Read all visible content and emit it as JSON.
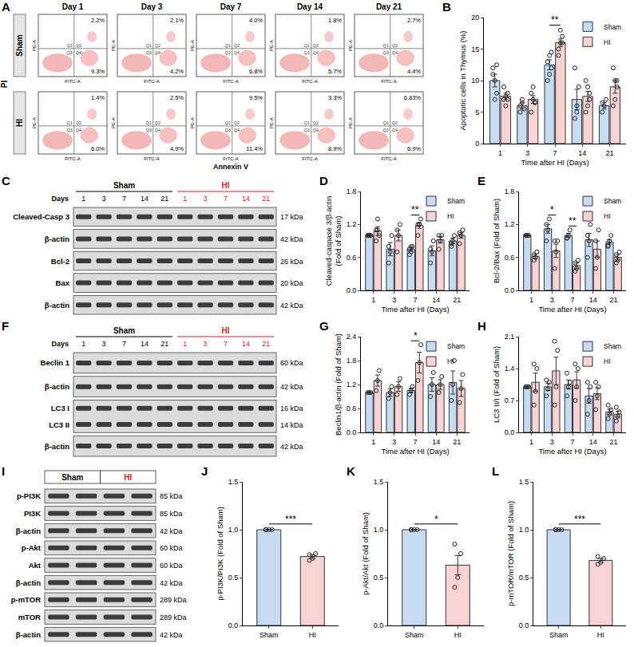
{
  "flow_cytometry": {
    "panel": "A",
    "y_axis": "PI",
    "x_axis": "Annexin V",
    "y_channel": "PE-A",
    "x_channel": "FITC-A",
    "quadrants": [
      "Q1",
      "Q2",
      "Q3",
      "Q4"
    ],
    "days": [
      "Day 1",
      "Day 3",
      "Day 7",
      "Day 14",
      "Day 21"
    ],
    "rows": [
      {
        "label": "Sham",
        "upper_right": [
          "2.2%",
          "2.1%",
          "4.0%",
          "1.8%",
          "2.7%"
        ],
        "lower_right": [
          "9.3%",
          "4.2%",
          "6.8%",
          "5.7%",
          "4.4%"
        ]
      },
      {
        "label": "HI",
        "upper_right": [
          "1.4%",
          "2.5%",
          "9.5%",
          "3.3%",
          "6.83%"
        ],
        "lower_right": [
          "6.0%",
          "4.9%",
          "11.4%",
          "8.9%",
          "6.9%"
        ]
      }
    ]
  },
  "western_blots": [
    {
      "panel": "C",
      "lane_title": "Days",
      "groups": [
        {
          "label": "Sham",
          "color": "#000000",
          "lanes": [
            "1",
            "3",
            "7",
            "14",
            "21"
          ]
        },
        {
          "label": "HI",
          "color": "#e01e1e",
          "lanes": [
            "1",
            "3",
            "7",
            "14",
            "21"
          ]
        }
      ],
      "rows": [
        {
          "labels": [
            "Cleaved-Casp 3"
          ],
          "mws": [
            "17 kDa"
          ]
        },
        {
          "labels": [
            "β-actin"
          ],
          "mws": [
            "42 kDa"
          ]
        },
        {
          "labels": [
            "Bcl-2"
          ],
          "mws": [
            "26 kDa"
          ]
        },
        {
          "labels": [
            "Bax"
          ],
          "mws": [
            "20 kDa"
          ]
        },
        {
          "labels": [
            "β-actin"
          ],
          "mws": [
            "42 kDa"
          ]
        }
      ]
    },
    {
      "panel": "F",
      "lane_title": "Days",
      "groups": [
        {
          "label": "Sham",
          "color": "#000000",
          "lanes": [
            "1",
            "3",
            "7",
            "14",
            "21"
          ]
        },
        {
          "label": "HI",
          "color": "#e01e1e",
          "lanes": [
            "1",
            "3",
            "7",
            "14",
            "21"
          ]
        }
      ],
      "rows": [
        {
          "labels": [
            "Beclin 1"
          ],
          "mws": [
            "60 kDa"
          ]
        },
        {
          "labels": [
            "β-actin"
          ],
          "mws": [
            "42 kDa"
          ]
        },
        {
          "labels": [
            "LC3 I",
            "LC3 II"
          ],
          "mws": [
            "16 kDa",
            "14 kDa"
          ]
        },
        {
          "labels": [
            "β-actin"
          ],
          "mws": [
            "42 kDa"
          ]
        }
      ]
    },
    {
      "panel": "I",
      "groups": [
        {
          "label": "Sham",
          "color": "#000000"
        },
        {
          "label": "HI",
          "color": "#e01e1e"
        }
      ],
      "rows": [
        {
          "labels": [
            "p-PI3K"
          ],
          "mws": [
            "85 kDa"
          ]
        },
        {
          "labels": [
            "PI3K"
          ],
          "mws": [
            "85 kDa"
          ]
        },
        {
          "labels": [
            "β-actin"
          ],
          "mws": [
            "42 kDa"
          ]
        },
        {
          "labels": [
            "p-Akt"
          ],
          "mws": [
            "60 kDa"
          ]
        },
        {
          "labels": [
            "Akt"
          ],
          "mws": [
            "60 kDa"
          ]
        },
        {
          "labels": [
            "β-actin"
          ],
          "mws": [
            "42 kDa"
          ]
        },
        {
          "labels": [
            "p-mTOR"
          ],
          "mws": [
            "289 kDa"
          ]
        },
        {
          "labels": [
            "mTOR"
          ],
          "mws": [
            "289 kDa"
          ]
        },
        {
          "labels": [
            "β-actin"
          ],
          "mws": [
            "42 kDa"
          ]
        }
      ]
    }
  ],
  "chart_data": [
    {
      "panel": "B",
      "type": "bar",
      "xlabel": "Time after HI (Days)",
      "ylabel": "Apoptotic cells in Thymus (%)",
      "categories": [
        "1",
        "3",
        "7",
        "14",
        "21"
      ],
      "ylim": [
        0,
        20
      ],
      "yticks": [
        0,
        5,
        10,
        15,
        20
      ],
      "grid": false,
      "legend": "top right",
      "series": [
        {
          "name": "Sham",
          "color": "#c6dcf2",
          "values": [
            10,
            6,
            12.5,
            7,
            6
          ],
          "errors": [
            1.0,
            0.5,
            0.8,
            1.6,
            0.5
          ],
          "points": [
            [
              12,
              10,
              8,
              11,
              7,
              12.5
            ],
            [
              5,
              7,
              5.5,
              6,
              6.5
            ],
            [
              10,
              14,
              12,
              13,
              11,
              14.5
            ],
            [
              4,
              6,
              9,
              12,
              5
            ],
            [
              5,
              6,
              7,
              6.5
            ]
          ]
        },
        {
          "name": "HI",
          "color": "#f8d3d3",
          "values": [
            7.5,
            7,
            16,
            7.5,
            9
          ],
          "errors": [
            0.5,
            0.6,
            0.6,
            0.8,
            1.0
          ],
          "points": [
            [
              7,
              6,
              8,
              9,
              7.5,
              7
            ],
            [
              5,
              7,
              6.5,
              8,
              9,
              6.5
            ],
            [
              14,
              16,
              17,
              15,
              18,
              16
            ],
            [
              5,
              6,
              8,
              10,
              9,
              7
            ],
            [
              6,
              7,
              9,
              12,
              10,
              10
            ]
          ]
        }
      ],
      "annotations": [
        {
          "categories": [
            "7"
          ],
          "text": "**"
        }
      ]
    },
    {
      "panel": "D",
      "type": "bar",
      "xlabel": "Time after HI (Days)",
      "ylabel": "Cleaved-caspase 3/β-actin (Fold of Sham)",
      "categories": [
        "1",
        "3",
        "7",
        "14",
        "21"
      ],
      "ylim": [
        0,
        1.8
      ],
      "yticks": [
        {
          "value": 0,
          "label": "0.0"
        },
        0.6,
        1.2,
        1.8
      ],
      "grid": false,
      "legend": "top right",
      "series": [
        {
          "name": "Sham",
          "color": "#c6dcf2",
          "values": [
            1.0,
            0.75,
            0.75,
            0.72,
            0.9
          ],
          "errors": [
            0,
            0.12,
            0.04,
            0.09,
            0.05
          ],
          "points": [
            [
              1,
              1,
              1,
              1,
              1
            ],
            [
              0.5,
              0.7,
              1.0,
              0.8
            ],
            [
              0.65,
              0.8,
              0.8,
              0.75,
              0.7
            ],
            [
              0.5,
              0.7,
              0.9,
              0.75
            ],
            [
              0.8,
              0.9,
              1.0,
              0.85
            ]
          ]
        },
        {
          "name": "HI",
          "color": "#f8d3d3",
          "values": [
            1.08,
            1.0,
            1.18,
            0.92,
            1.0
          ],
          "errors": [
            0.08,
            0.1,
            0.05,
            0.06,
            0.05
          ],
          "points": [
            [
              0.9,
              1.3,
              1.0,
              1.1,
              1.1
            ],
            [
              0.7,
              1.0,
              1.2,
              1.1
            ],
            [
              1.0,
              1.2,
              1.3,
              1.2,
              1.2
            ],
            [
              0.75,
              0.9,
              1.0,
              1.0
            ],
            [
              0.85,
              1.0,
              1.1,
              1.05
            ]
          ]
        }
      ],
      "annotations": [
        {
          "categories": [
            "7"
          ],
          "text": "**"
        }
      ]
    },
    {
      "panel": "E",
      "type": "bar",
      "xlabel": "Time after HI (Days)",
      "ylabel": "Bcl-2/Bax (Fold of Sham)",
      "categories": [
        "1",
        "3",
        "7",
        "14",
        "21"
      ],
      "ylim": [
        0,
        1.8
      ],
      "yticks": [
        {
          "value": 0,
          "label": "0.0"
        },
        0.6,
        1.2,
        1.8
      ],
      "grid": false,
      "legend": "top right",
      "series": [
        {
          "name": "Sham",
          "color": "#c6dcf2",
          "values": [
            1.0,
            1.12,
            1.0,
            0.92,
            0.88
          ],
          "errors": [
            0,
            0.08,
            0.04,
            0.12,
            0.04
          ],
          "points": [
            [
              1,
              1,
              1,
              1
            ],
            [
              0.9,
              1.1,
              1.3,
              1.2
            ],
            [
              0.95,
              1.0,
              1.1,
              0.95
            ],
            [
              0.6,
              0.9,
              1.2,
              1.0
            ],
            [
              0.8,
              0.9,
              1.0,
              0.82
            ]
          ]
        },
        {
          "name": "HI",
          "color": "#f8d3d3",
          "values": [
            0.62,
            0.72,
            0.45,
            0.75,
            0.6
          ],
          "errors": [
            0.04,
            0.12,
            0.05,
            0.15,
            0.05
          ],
          "points": [
            [
              0.55,
              0.6,
              0.7,
              0.65
            ],
            [
              0.4,
              0.7,
              0.9,
              0.9
            ],
            [
              0.35,
              0.4,
              0.55,
              0.5
            ],
            [
              0.4,
              0.6,
              1.1,
              0.9
            ],
            [
              0.5,
              0.55,
              0.7,
              0.65
            ]
          ]
        }
      ],
      "annotations": [
        {
          "categories": [
            "3"
          ],
          "text": "*"
        },
        {
          "categories": [
            "7"
          ],
          "text": "**"
        }
      ]
    },
    {
      "panel": "G",
      "type": "bar",
      "xlabel": "Time after HI (Days)",
      "ylabel": "Beclin1/β-actin (Fold of Sham)",
      "categories": [
        "1",
        "3",
        "7",
        "14",
        "21"
      ],
      "ylim": [
        0,
        2.4
      ],
      "yticks": [
        {
          "value": 0,
          "label": "0.0"
        },
        0.6,
        1.2,
        1.8,
        2.4
      ],
      "grid": false,
      "legend": "top right",
      "series": [
        {
          "name": "Sham",
          "color": "#c6dcf2",
          "values": [
            1.0,
            1.0,
            1.05,
            1.2,
            1.25
          ],
          "errors": [
            0,
            0.09,
            0.06,
            0.17,
            0.29
          ],
          "points": [
            [
              1,
              1,
              1
            ],
            [
              0.85,
              1.0,
              1.15
            ],
            [
              0.95,
              1.05,
              1.15
            ],
            [
              0.9,
              1.2,
              1.5
            ],
            [
              0.8,
              1.2,
              1.8
            ]
          ]
        },
        {
          "name": "HI",
          "color": "#f8d3d3",
          "values": [
            1.3,
            1.15,
            1.75,
            1.2,
            1.1
          ],
          "errors": [
            0.14,
            0.12,
            0.26,
            0.12,
            0.2
          ],
          "points": [
            [
              1.05,
              1.3,
              1.55
            ],
            [
              0.95,
              1.15,
              1.35
            ],
            [
              1.3,
              1.75,
              2.2
            ],
            [
              1.0,
              1.2,
              1.4
            ],
            [
              0.75,
              1.1,
              1.45
            ]
          ]
        }
      ],
      "annotations": [
        {
          "categories": [
            "7"
          ],
          "text": "*"
        }
      ]
    },
    {
      "panel": "H",
      "type": "bar",
      "xlabel": "Time after HI (Days)",
      "ylabel": "LC3 II/I (Fold of Sham)",
      "categories": [
        "1",
        "3",
        "7",
        "14",
        "21"
      ],
      "ylim": [
        0,
        2.1
      ],
      "yticks": [
        {
          "value": 0,
          "label": "0.0"
        },
        0.7,
        1.4,
        2.1
      ],
      "grid": false,
      "legend": "top right",
      "series": [
        {
          "name": "Sham",
          "color": "#c6dcf2",
          "values": [
            1.0,
            1.0,
            1.05,
            0.8,
            0.45
          ],
          "errors": [
            0,
            0.08,
            0.1,
            0.16,
            0.06
          ],
          "points": [
            [
              1,
              1,
              1,
              1
            ],
            [
              0.8,
              0.95,
              1.1,
              1.15
            ],
            [
              0.8,
              1.0,
              1.1,
              1.3
            ],
            [
              0.4,
              0.7,
              1.0,
              1.1
            ],
            [
              0.3,
              0.4,
              0.5,
              0.6
            ]
          ]
        },
        {
          "name": "HI",
          "color": "#f8d3d3",
          "values": [
            1.1,
            1.35,
            1.15,
            0.85,
            0.4
          ],
          "errors": [
            0.2,
            0.3,
            0.18,
            0.13,
            0.06
          ],
          "points": [
            [
              0.6,
              0.9,
              1.4,
              1.5
            ],
            [
              0.6,
              1.0,
              1.8,
              2.0
            ],
            [
              0.7,
              1.0,
              1.4,
              1.5
            ],
            [
              0.5,
              0.8,
              1.0,
              1.1
            ],
            [
              0.25,
              0.35,
              0.45,
              0.55
            ]
          ]
        }
      ],
      "annotations": []
    },
    {
      "panel": "J",
      "type": "bar",
      "ylabel": "p-PI3K/PI3K (Fold of Sham)",
      "categories": [
        "Sham",
        "HI"
      ],
      "ylim": [
        0,
        1.5
      ],
      "yticks": [
        {
          "value": 0,
          "label": "0.0"
        },
        0.5,
        {
          "value": 1,
          "label": "1.0"
        },
        1.5
      ],
      "grid": false,
      "colors": [
        "#c6dcf2",
        "#f8d3d3"
      ],
      "values": [
        1.0,
        0.72
      ],
      "errors": [
        0,
        0.02
      ],
      "points": [
        [
          1,
          1,
          1,
          1
        ],
        [
          0.68,
          0.7,
          0.75,
          0.74
        ]
      ],
      "annotations": [
        {
          "categories": [
            "Sham",
            "HI"
          ],
          "text": "***"
        }
      ]
    },
    {
      "panel": "K",
      "type": "bar",
      "ylabel": "p-Akt/Akt (Fold of Sham)",
      "categories": [
        "Sham",
        "HI"
      ],
      "ylim": [
        0,
        1.5
      ],
      "yticks": [
        {
          "value": 0,
          "label": "0.0"
        },
        0.5,
        {
          "value": 1,
          "label": "1.0"
        },
        1.5
      ],
      "grid": false,
      "colors": [
        "#c6dcf2",
        "#f8d3d3"
      ],
      "values": [
        1.0,
        0.63
      ],
      "errors": [
        0,
        0.1
      ],
      "points": [
        [
          1,
          1,
          1,
          1
        ],
        [
          0.4,
          0.5,
          0.75,
          0.85
        ]
      ],
      "annotations": [
        {
          "categories": [
            "Sham",
            "HI"
          ],
          "text": "*"
        }
      ]
    },
    {
      "panel": "L",
      "type": "bar",
      "ylabel": "p-mTOR/mTOR (Fold of Sham)",
      "categories": [
        "Sham",
        "HI"
      ],
      "ylim": [
        0,
        1.5
      ],
      "yticks": [
        {
          "value": 0,
          "label": "0.0"
        },
        0.5,
        {
          "value": 1,
          "label": "1.0"
        },
        1.5
      ],
      "grid": false,
      "colors": [
        "#c6dcf2",
        "#f8d3d3"
      ],
      "values": [
        1.0,
        0.68
      ],
      "errors": [
        0,
        0.02
      ],
      "points": [
        [
          1,
          1,
          1,
          1
        ],
        [
          0.64,
          0.66,
          0.7,
          0.72
        ]
      ],
      "annotations": [
        {
          "categories": [
            "Sham",
            "HI"
          ],
          "text": "***"
        }
      ]
    }
  ]
}
